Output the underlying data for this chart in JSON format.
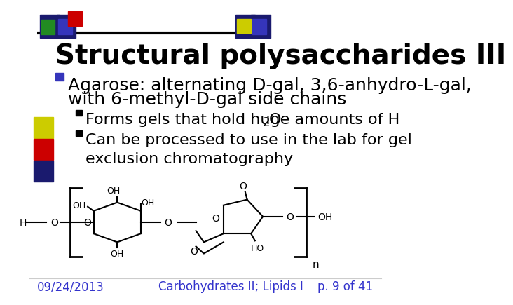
{
  "title": "Structural polysaccharides III",
  "title_fontsize": 28,
  "title_color": "#000000",
  "title_bold": true,
  "bullet1_line1": "Agarose: alternating D-gal, 3,6-anhydro-L-gal,",
  "bullet1_line2": "with 6-methyl-D-gal side chains",
  "sub_bullet1_pre": "Forms gels that hold huge amounts of H",
  "sub_bullet1_sub": "2",
  "sub_bullet1_post": "O",
  "sub_bullet2": "Can be processed to use in the lab for gel\nexclusion chromatography",
  "bullet_fontsize": 18,
  "sub_bullet_fontsize": 16,
  "bullet_color": "#000000",
  "footer_left": "09/24/2013",
  "footer_center": "Carbohydrates II; Lipids I",
  "footer_right": "p. 9 of 41",
  "footer_color": "#3333cc",
  "footer_fontsize": 12,
  "bg_color": "#ffffff"
}
